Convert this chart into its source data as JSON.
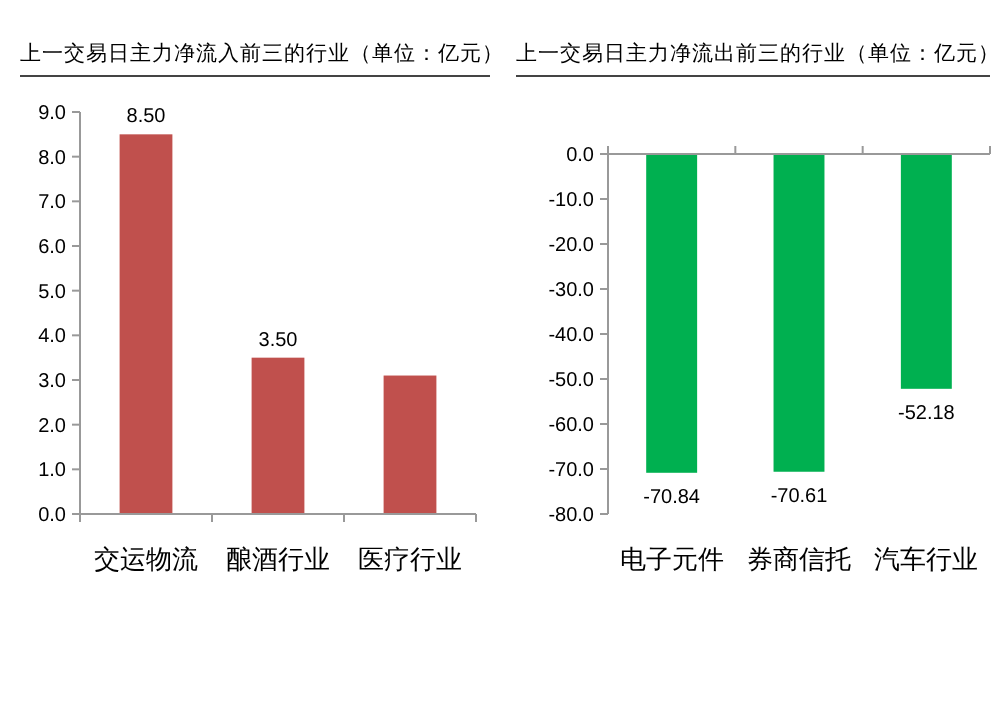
{
  "chart_data": [
    {
      "type": "bar",
      "title": "上一交易日主力净流入前三的行业（单位：亿元）",
      "categories": [
        "交运物流",
        "酿酒行业",
        "医疗行业"
      ],
      "values": [
        8.5,
        3.5,
        3.1
      ],
      "value_labels": [
        "8.50",
        "3.50",
        null
      ],
      "color": "#c0504d",
      "ylim": [
        0,
        9
      ],
      "yticks": [
        {
          "value": 0,
          "label": "0.0"
        },
        {
          "value": 1,
          "label": "1.0"
        },
        {
          "value": 2,
          "label": "2.0"
        },
        {
          "value": 3,
          "label": "3.0"
        },
        {
          "value": 4,
          "label": "4.0"
        },
        {
          "value": 5,
          "label": "5.0"
        },
        {
          "value": 6,
          "label": "6.0"
        },
        {
          "value": 7,
          "label": "7.0"
        },
        {
          "value": 8,
          "label": "8.0"
        },
        {
          "value": 9,
          "label": "9.0"
        }
      ],
      "grid": false,
      "legend": false
    },
    {
      "type": "bar",
      "title": "上一交易日主力净流出前三的行业（单位：亿元）",
      "categories": [
        "电子元件",
        "券商信托",
        "汽车行业"
      ],
      "values": [
        -70.84,
        -70.61,
        -52.18
      ],
      "data_labels": true,
      "color": "#00b050",
      "ylim": [
        -80,
        0
      ],
      "yticks": [
        {
          "value": 0,
          "label": "0.0"
        },
        {
          "value": -10,
          "label": "-10.0"
        },
        {
          "value": -20,
          "label": "-20.0"
        },
        {
          "value": -30,
          "label": "-30.0"
        },
        {
          "value": -40,
          "label": "-40.0"
        },
        {
          "value": -50,
          "label": "-50.0"
        },
        {
          "value": -60,
          "label": "-60.0"
        },
        {
          "value": -70,
          "label": "-70.0"
        },
        {
          "value": -80,
          "label": "-80.0"
        }
      ],
      "grid": false,
      "legend": false
    }
  ]
}
